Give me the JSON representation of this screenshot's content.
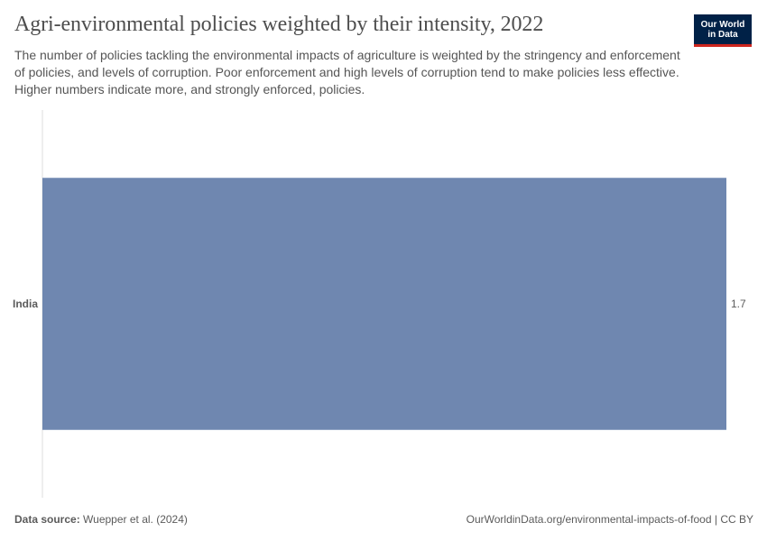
{
  "header": {
    "title": "Agri-environmental policies weighted by their intensity, 2022",
    "subtitle": "The number of policies tackling the environmental impacts of agriculture is weighted by the stringency and enforcement of policies, and levels of corruption. Poor enforcement and high levels of corruption tend to make policies less effective. Higher numbers indicate more, and strongly enforced, policies.",
    "logo_line1": "Our World",
    "logo_line2": "in Data"
  },
  "colors": {
    "bar": "#6f87b0",
    "axis": "#dddddd",
    "logo_bg": "#002147",
    "logo_accent": "#ce261e"
  },
  "chart_data": {
    "type": "bar",
    "orientation": "horizontal",
    "categories": [
      "India"
    ],
    "values": [
      1.7
    ],
    "value_labels": [
      "1.7"
    ],
    "title": "Agri-environmental policies weighted by their intensity, 2022",
    "xlabel": "",
    "ylabel": "",
    "xlim": [
      0,
      1.7
    ],
    "grid": false
  },
  "footer": {
    "source_label": "Data source:",
    "source_value": "Wuepper et al. (2024)",
    "link": "OurWorldinData.org/environmental-impacts-of-food | CC BY"
  }
}
